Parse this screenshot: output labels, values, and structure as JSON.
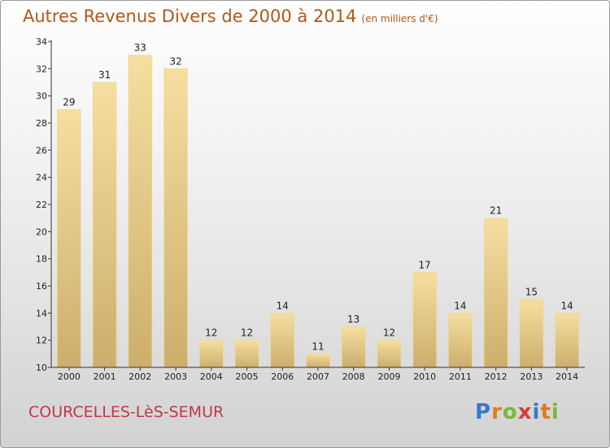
{
  "header": {
    "title": "Autres Revenus Divers de 2000 à 2014",
    "unit": "(en milliers d'€)"
  },
  "footer": {
    "commune": "COURCELLES-LèS-SEMUR",
    "logo": {
      "text": "Proxiti",
      "letters": [
        {
          "char": "P",
          "color": "#3a79c8"
        },
        {
          "char": "r",
          "color": "#e07a1c"
        },
        {
          "char": "o",
          "color": "#7ab83a"
        },
        {
          "char": "x",
          "color": "#d83a3a"
        },
        {
          "char": "i",
          "color": "#3a79c8"
        },
        {
          "char": "t",
          "color": "#e07a1c"
        },
        {
          "char": "i",
          "color": "#7ab83a"
        }
      ]
    }
  },
  "chart_data": {
    "type": "bar",
    "title": "Autres Revenus Divers de 2000 à 2014",
    "subtitle": "(en milliers d'€)",
    "categories": [
      "2000",
      "2001",
      "2002",
      "2003",
      "2004",
      "2005",
      "2006",
      "2007",
      "2008",
      "2009",
      "2010",
      "2011",
      "2012",
      "2013",
      "2014"
    ],
    "values": [
      29,
      31,
      33,
      32,
      12,
      12,
      14,
      11,
      13,
      12,
      17,
      14,
      21,
      15,
      14
    ],
    "ylim": [
      10,
      34
    ],
    "yticks": [
      10,
      12,
      14,
      16,
      18,
      20,
      22,
      24,
      26,
      28,
      30,
      32,
      34
    ],
    "grid": false,
    "colors": {
      "bar_light": "#f5dfa0",
      "bar_dark": "#cdae6c",
      "axis": "#333333"
    }
  }
}
